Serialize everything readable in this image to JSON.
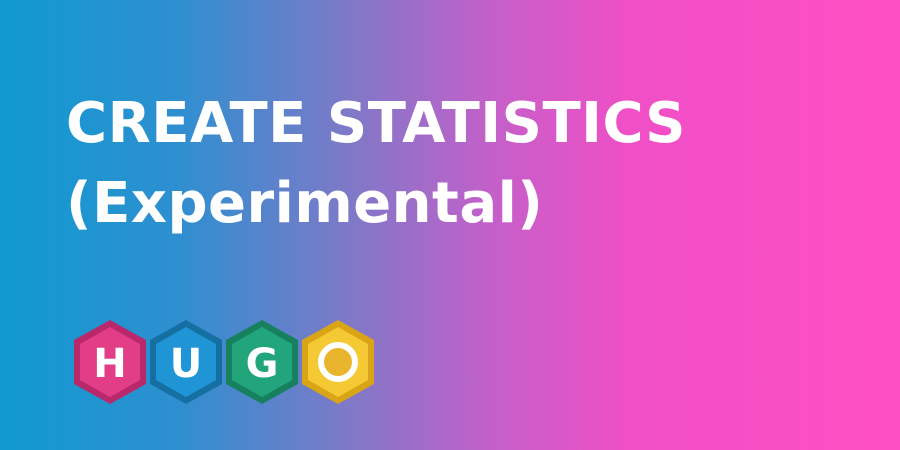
{
  "title": {
    "line1": "CREATE STATISTICS",
    "line2": "(Experimental)"
  },
  "logo": {
    "letters": [
      {
        "char": "H",
        "color": "#e23d87",
        "border": "#b8286a"
      },
      {
        "char": "U",
        "color": "#1f95d6",
        "border": "#166fa3"
      },
      {
        "char": "G",
        "color": "#23a57c",
        "border": "#17805f"
      },
      {
        "char": "O",
        "color": "#f5c933",
        "border": "#d9a415"
      }
    ]
  },
  "colors": {
    "gradient_start": "#0f9ad0",
    "gradient_end": "#ff4fc4",
    "text": "#ffffff"
  }
}
